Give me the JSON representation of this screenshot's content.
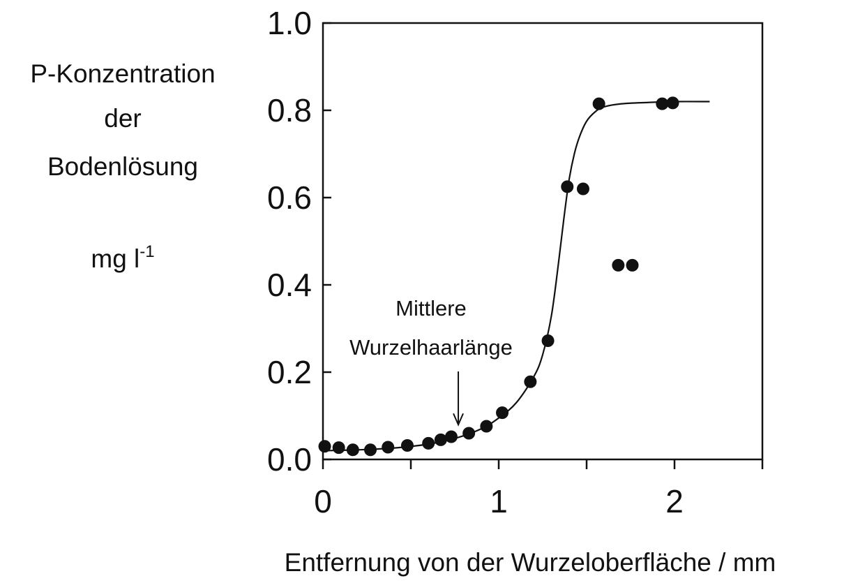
{
  "chart_data": {
    "type": "scatter",
    "title": "",
    "ylabel_lines": [
      "P-Konzentration",
      "der",
      "Bodenlösung"
    ],
    "yunit": {
      "base": "mg l",
      "sup": "-1"
    },
    "xlabel": "Entfernung von der Wurzeloberfläche / mm",
    "xlim": [
      0,
      2.5
    ],
    "ylim": [
      0,
      1.0
    ],
    "xticks": [
      0,
      0.5,
      1,
      1.5,
      2,
      2.5
    ],
    "xtick_labels": [
      "0",
      "",
      "1",
      "",
      "2",
      ""
    ],
    "yticks": [
      0,
      0.2,
      0.4,
      0.6,
      0.8,
      1.0
    ],
    "ytick_labels": [
      "0.0",
      "0.2",
      "0.4",
      "0.6",
      "0.8",
      "1.0"
    ],
    "grid": false,
    "points": {
      "x": [
        0.01,
        0.09,
        0.17,
        0.27,
        0.37,
        0.48,
        0.6,
        0.67,
        0.73,
        0.83,
        0.93,
        1.02,
        1.18,
        1.28,
        1.39,
        1.48,
        1.57,
        1.68,
        1.76,
        1.93,
        1.99
      ],
      "y": [
        0.03,
        0.027,
        0.022,
        0.022,
        0.028,
        0.032,
        0.037,
        0.045,
        0.052,
        0.06,
        0.076,
        0.107,
        0.178,
        0.272,
        0.625,
        0.62,
        0.815,
        0.445,
        0.445,
        0.815,
        0.817
      ]
    },
    "fit_curve": {
      "x": [
        0,
        0.2,
        0.4,
        0.6,
        0.75,
        0.9,
        1.0,
        1.1,
        1.2,
        1.25,
        1.3,
        1.34,
        1.37,
        1.4,
        1.43,
        1.46,
        1.5,
        1.55,
        1.6,
        1.7,
        1.85,
        2.0,
        2.2
      ],
      "y": [
        0.02,
        0.022,
        0.026,
        0.035,
        0.048,
        0.07,
        0.095,
        0.13,
        0.19,
        0.24,
        0.33,
        0.45,
        0.55,
        0.64,
        0.7,
        0.74,
        0.775,
        0.797,
        0.808,
        0.815,
        0.818,
        0.82,
        0.82
      ]
    },
    "annotation": {
      "lines": [
        "Mittlere",
        "Wurzelhaarlänge"
      ],
      "arrow_x": 0.77,
      "arrow_y": 0.07
    }
  }
}
